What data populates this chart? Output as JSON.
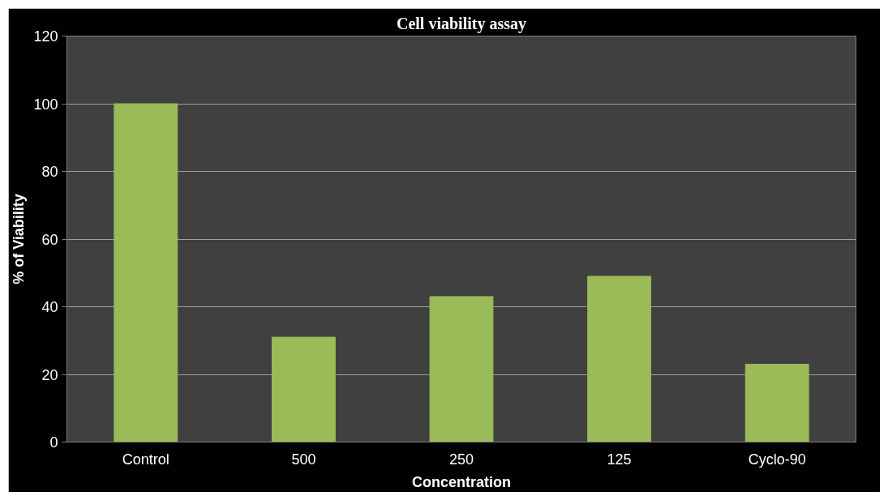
{
  "chart_data": {
    "type": "bar",
    "title": "Cell viability assay",
    "xlabel": "Concentration",
    "ylabel": "% of Viability",
    "categories": [
      "Control",
      "500",
      "250",
      "125",
      "Cyclo-90"
    ],
    "values": [
      100,
      31,
      43,
      49,
      23
    ],
    "color": "#9bbb59",
    "ylim": [
      0,
      120
    ],
    "yticks": [
      0,
      20,
      40,
      60,
      80,
      100,
      120
    ],
    "grid": "y"
  }
}
